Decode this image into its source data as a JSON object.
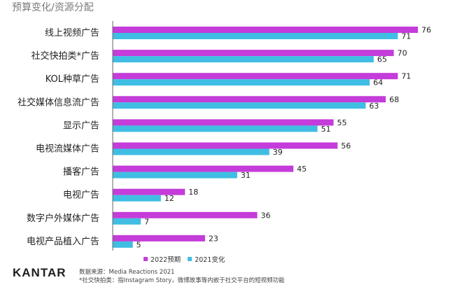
{
  "header": {
    "subtitle": "预算变化/资源分配"
  },
  "chart_data": {
    "type": "bar",
    "orientation": "horizontal",
    "categories": [
      "线上视频广告",
      "社交快拍类*广告",
      "KOL种草广告",
      "社交媒体信息流广告",
      "显示广告",
      "电视流媒体广告",
      "播客广告",
      "电视广告",
      "数字户外媒体广告",
      "电视产品植入广告"
    ],
    "series": [
      {
        "name": "2022预期",
        "color": "#c43cd9",
        "values": [
          76,
          70,
          71,
          68,
          55,
          56,
          45,
          18,
          36,
          23
        ]
      },
      {
        "name": "2021变化",
        "color": "#3fbde3",
        "values": [
          71,
          65,
          64,
          63,
          51,
          39,
          31,
          12,
          7,
          5
        ]
      }
    ],
    "xlim": [
      0,
      76
    ],
    "grid": false,
    "legend_position": "bottom"
  },
  "footer": {
    "brand": "KANTAR",
    "source": "数据来源：Media Reactions 2021",
    "note": "*社交快拍类：指Instagram Story，微博故事等内嵌于社交平台的短视频功能"
  },
  "colors": {
    "series_2022": "#c43cd9",
    "series_2021": "#3fbde3",
    "axis": "#666666"
  }
}
